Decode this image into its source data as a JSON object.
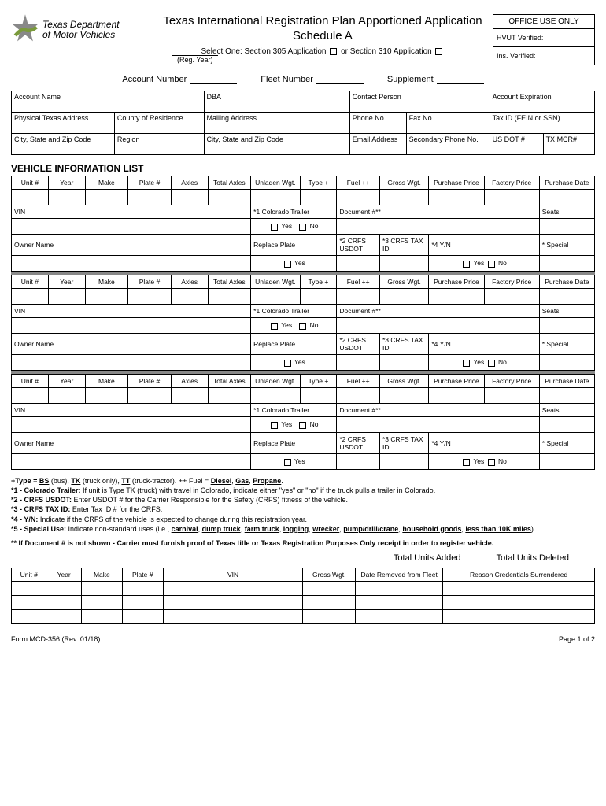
{
  "header": {
    "agency_line1": "Texas Department",
    "agency_line2": "of Motor Vehicles",
    "title": "Texas International Registration Plan Apportioned Application",
    "subtitle": "Schedule A",
    "reg_year_label": "(Reg. Year)",
    "select_one": "Select One: Section 305 Application",
    "or_310": "or Section 310 Application",
    "office_use": "OFFICE USE ONLY",
    "hvut": "HVUT Verified:",
    "ins": "Ins. Verified:"
  },
  "acct_line": {
    "account_number": "Account Number",
    "fleet_number": "Fleet Number",
    "supplement": "Supplement"
  },
  "main_fields": {
    "r1": [
      "Account Name",
      "DBA",
      "Contact Person",
      "Account Expiration"
    ],
    "r2": [
      "Physical Texas Address",
      "County of Residence",
      "Mailing Address",
      "Phone No.",
      "Fax No.",
      "Tax ID (FEIN or SSN)"
    ],
    "r3": [
      "City, State and Zip Code",
      "Region",
      "City, State and Zip Code",
      "Email Address",
      "Secondary Phone No.",
      "US DOT #",
      "TX MCR#"
    ]
  },
  "section_title": "VEHICLE INFORMATION LIST",
  "veh_headers": [
    "Unit #",
    "Year",
    "Make",
    "Plate #",
    "Axles",
    "Total Axles",
    "Unladen Wgt.",
    "Type +",
    "Fuel ++",
    "Gross Wgt.",
    "Purchase Price",
    "Factory Price",
    "Purchase Date"
  ],
  "veh_sub": {
    "vin": "VIN",
    "colo": "*1 Colorado Trailer",
    "yes": "Yes",
    "no": "No",
    "doc": "Document #**",
    "seats": "Seats",
    "owner": "Owner Name",
    "replace": "Replace Plate",
    "crfs_usdot": "*2 CRFS USDOT",
    "crfs_tax": "*3 CRFS TAX ID",
    "yn4": "*4 Y/N",
    "special": "* Special"
  },
  "notes": {
    "l1a": "+Type = ",
    "l1b": "BS",
    "l1c": " (bus), ",
    "l1d": "TK",
    "l1e": " (truck only), ",
    "l1f": "TT",
    "l1g": " (truck-tractor).  ++ Fuel = ",
    "l1h": "Diesel",
    "l1i": ", ",
    "l1j": "Gas",
    "l1k": ", ",
    "l1l": "Propane",
    "l1m": ".",
    "l2": "*1 - Colorado Trailer: If unit is Type TK (truck) with travel in Colorado, indicate either \"yes\" or \"no\" if the truck pulls a trailer in Colorado.",
    "l3": "*2 - CRFS USDOT: Enter USDOT # for the Carrier Responsible for the Safety (CRFS) fitness of the vehicle.",
    "l4": "*3 - CRFS TAX ID: Enter Tax ID # for the CRFS.",
    "l5": "*4 - Y/N: Indicate if the CRFS of the vehicle is expected to change during this registration year.",
    "l6a": "*5 - Special Use: Indicate non-standard uses (i.e., ",
    "l6b": "carnival",
    "l6c": ", ",
    "l6d": "dump truck",
    "l6e": ", ",
    "l6f": "farm truck",
    "l6g": ", ",
    "l6h": "logging",
    "l6i": ", ",
    "l6j": "wrecker",
    "l6k": ", ",
    "l6l": "pump/drill/crane",
    "l6m": ", ",
    "l6n": "household goods",
    "l6o": ", ",
    "l6p": "less than 10K miles",
    "l6q": ")",
    "l7": "** If Document # is not shown - Carrier must furnish proof of Texas title or Texas Registration Purposes Only receipt in order to register vehicle."
  },
  "totals": {
    "added": "Total Units Added",
    "deleted": "Total Units Deleted"
  },
  "del_headers": [
    "Unit #",
    "Year",
    "Make",
    "Plate #",
    "VIN",
    "Gross Wgt.",
    "Date Removed from Fleet",
    "Reason Credentials Surrendered"
  ],
  "footer": {
    "form": "Form MCD-356  (Rev. 01/18)",
    "page": "Page 1 of 2"
  }
}
